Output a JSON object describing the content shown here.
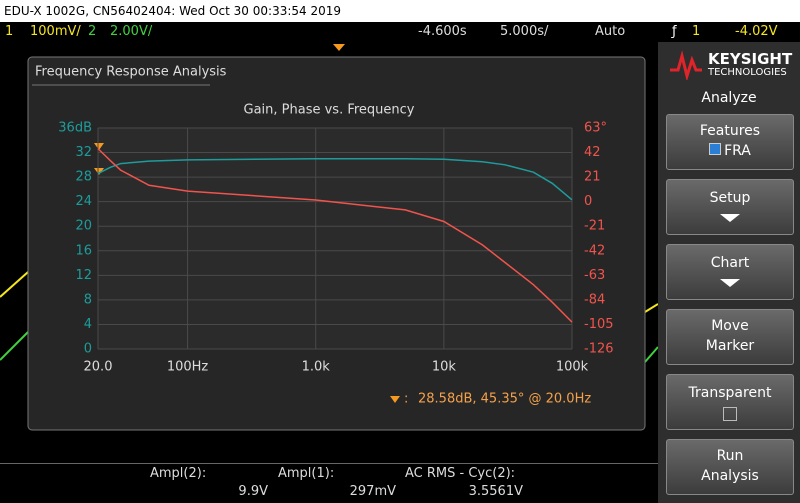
{
  "header": {
    "title": "EDU-X 1002G, CN56402404: Wed Oct 30 00:33:54 2019"
  },
  "status": {
    "ch1": "1",
    "ch1_scale": "100mV/",
    "ch2": "2",
    "ch2_scale": "2.00V/",
    "delay": "-4.600s",
    "timebase": "5.000s/",
    "mode": "Auto",
    "trigger_source": "1",
    "trigger_level": "-4.02V"
  },
  "panel": {
    "brand": "KEYSIGHT",
    "brand_sub": "TECHNOLOGIES",
    "menu": "Analyze"
  },
  "softkeys": [
    {
      "label": "Features",
      "sub": "FRA"
    },
    {
      "label": "Setup"
    },
    {
      "label": "Chart"
    },
    {
      "label": "Move",
      "sub": "Marker"
    },
    {
      "label": "Transparent"
    },
    {
      "label": "Run",
      "sub": "Analysis"
    }
  ],
  "dialog": {
    "title": "Frequency Response Analysis"
  },
  "measurements": [
    {
      "label": "Ampl(2):",
      "value": "9.9V"
    },
    {
      "label": "Ampl(1):",
      "value": "297mV"
    },
    {
      "label": "AC RMS - Cyc(2):",
      "value": "3.5561V"
    }
  ],
  "chart_data": {
    "type": "line",
    "title": "Gain, Phase vs. Frequency",
    "annotation": "28.58dB, 45.35° @ 20.0Hz",
    "x": [
      20,
      25,
      30,
      50,
      100,
      1000,
      5000,
      10000,
      20000,
      30000,
      50000,
      70000,
      100000
    ],
    "xlog": true,
    "xlim": [
      20,
      100000
    ],
    "xticks": [
      {
        "value": 20,
        "label": "20.0"
      },
      {
        "value": 100,
        "label": "100Hz"
      },
      {
        "value": 1000,
        "label": "1.0k"
      },
      {
        "value": 10000,
        "label": "10k"
      },
      {
        "value": 100000,
        "label": "100k"
      }
    ],
    "ylim": [
      0,
      36
    ],
    "yticks": [
      0,
      4,
      8,
      12,
      16,
      20,
      24,
      28,
      32,
      {
        "value": 36,
        "label": "36dB"
      }
    ],
    "y2lim": [
      -126,
      63
    ],
    "y2ticks": [
      -126,
      -105,
      -84,
      -63,
      -42,
      -21,
      0,
      21,
      42,
      {
        "value": 63,
        "label": "63°"
      }
    ],
    "grid": true,
    "series": [
      {
        "color": "#1e9c9c",
        "values": [
          28.58,
          29.6,
          30.2,
          30.6,
          30.8,
          31,
          31,
          30.9,
          30.5,
          30,
          28.8,
          27,
          24.3
        ]
      },
      {
        "color": "#f0544c",
        "axis": "y2",
        "values": [
          45.35,
          35,
          27,
          14,
          9,
          1.4,
          -7,
          -17,
          -37,
          -52,
          -71,
          -86,
          -103
        ]
      }
    ]
  }
}
